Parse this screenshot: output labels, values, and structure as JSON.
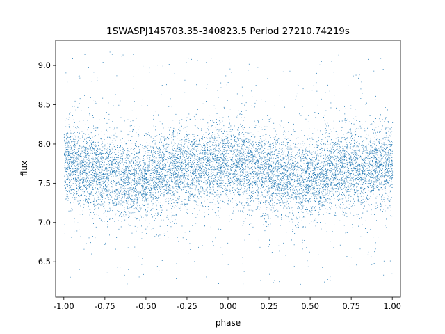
{
  "chart_data": {
    "type": "scatter",
    "title": "1SWASPJ145703.35-340823.5 Period 27210.74219s",
    "xlabel": "phase",
    "ylabel": "flux",
    "xlim": [
      -1.05,
      1.05
    ],
    "ylim": [
      6.05,
      9.32
    ],
    "x_ticks": [
      "-1.00",
      "-0.75",
      "-0.50",
      "-0.25",
      "0.00",
      "0.25",
      "0.50",
      "0.75",
      "1.00"
    ],
    "y_ticks": [
      "6.5",
      "7.0",
      "7.5",
      "8.0",
      "8.5",
      "9.0"
    ],
    "grid": false,
    "legend": "none",
    "point_color": "#1f77b4",
    "series": [
      {
        "x_range": [
          -1.0,
          1.0
        ],
        "profile": [
          {
            "phase": -1.0,
            "flux": 7.75
          },
          {
            "phase": -0.75,
            "flux": 7.64
          },
          {
            "phase": -0.55,
            "flux": 7.55
          },
          {
            "phase": -0.25,
            "flux": 7.7
          },
          {
            "phase": 0.0,
            "flux": 7.75
          },
          {
            "phase": 0.25,
            "flux": 7.64
          },
          {
            "phase": 0.45,
            "flux": 7.55
          },
          {
            "phase": 0.75,
            "flux": 7.7
          },
          {
            "phase": 1.0,
            "flux": 7.75
          }
        ],
        "scatter_sigma": 0.24,
        "outlier_range": [
          6.2,
          9.2
        ]
      }
    ]
  }
}
